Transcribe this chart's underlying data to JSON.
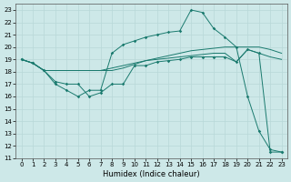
{
  "xlabel": "Humidex (Indice chaleur)",
  "xlim": [
    -0.5,
    23.5
  ],
  "ylim": [
    11,
    23.5
  ],
  "yticks": [
    11,
    12,
    13,
    14,
    15,
    16,
    17,
    18,
    19,
    20,
    21,
    22,
    23
  ],
  "xticks": [
    0,
    1,
    2,
    3,
    4,
    5,
    6,
    7,
    8,
    9,
    10,
    11,
    12,
    13,
    14,
    15,
    16,
    17,
    18,
    19,
    20,
    21,
    22,
    23
  ],
  "bg_color": "#cde8e8",
  "line_color": "#1a7a6e",
  "grid_color": "#b8d8d8",
  "line1_x": [
    0,
    1,
    2,
    3,
    4,
    5,
    6,
    7,
    8,
    9,
    10,
    11,
    12,
    13,
    14,
    15,
    16,
    17,
    18,
    19,
    20,
    21,
    22,
    23
  ],
  "line1_y": [
    19,
    18.7,
    18.1,
    18.1,
    18.1,
    18.1,
    18.1,
    18.1,
    18.1,
    18.3,
    18.6,
    18.9,
    19.1,
    19.3,
    19.5,
    19.7,
    19.8,
    19.9,
    20.0,
    20.0,
    20.0,
    20.0,
    19.8,
    19.5
  ],
  "line2_x": [
    0,
    1,
    2,
    3,
    4,
    5,
    6,
    7,
    8,
    9,
    10,
    11,
    12,
    13,
    14,
    15,
    16,
    17,
    18,
    19,
    20,
    21,
    22,
    23
  ],
  "line2_y": [
    19,
    18.7,
    18.1,
    18.1,
    18.1,
    18.1,
    18.1,
    18.1,
    18.3,
    18.5,
    18.7,
    18.9,
    19.0,
    19.1,
    19.2,
    19.3,
    19.4,
    19.5,
    19.5,
    18.8,
    19.8,
    19.5,
    19.2,
    19.0
  ],
  "line3_x": [
    0,
    1,
    2,
    3,
    4,
    5,
    6,
    7,
    8,
    9,
    10,
    11,
    12,
    13,
    14,
    15,
    16,
    17,
    18,
    19,
    20,
    21,
    22,
    23
  ],
  "line3_y": [
    19,
    18.7,
    18.1,
    17.2,
    17.0,
    17.0,
    16.0,
    16.3,
    17.0,
    17.0,
    18.5,
    18.5,
    18.8,
    18.9,
    19.0,
    19.2,
    19.2,
    19.2,
    19.2,
    18.8,
    19.8,
    19.5,
    11.5,
    11.5
  ],
  "line4_x": [
    0,
    1,
    2,
    3,
    4,
    5,
    6,
    7,
    8,
    9,
    10,
    11,
    12,
    13,
    14,
    15,
    16,
    17,
    18,
    19,
    20,
    21,
    22,
    23
  ],
  "line4_y": [
    19,
    18.7,
    18.1,
    17.0,
    16.5,
    16.0,
    16.5,
    16.5,
    19.5,
    20.2,
    20.5,
    20.8,
    21.0,
    21.2,
    21.3,
    23.0,
    22.8,
    21.5,
    20.8,
    20.0,
    16.0,
    13.2,
    11.7,
    11.5
  ]
}
